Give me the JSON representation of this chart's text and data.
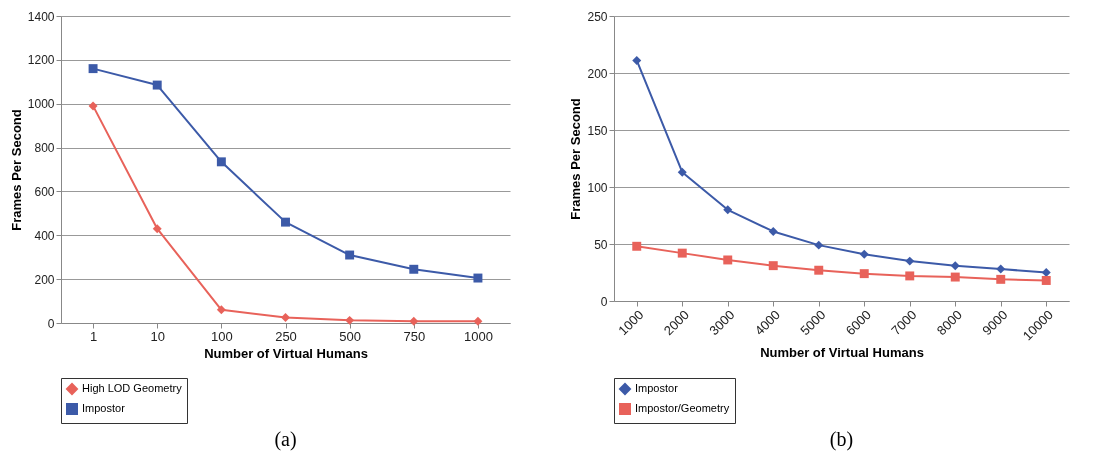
{
  "chart_data": [
    {
      "type": "line",
      "xlabel": "Number of Virtual Humans",
      "ylabel": "Frames Per Second",
      "categories": [
        "1",
        "10",
        "100",
        "250",
        "500",
        "750",
        "1000"
      ],
      "ylim": [
        0,
        1400
      ],
      "yticks": [
        0,
        200,
        400,
        600,
        800,
        1000,
        1200,
        1400
      ],
      "grid": "y",
      "legend": "bottom left",
      "annotations": [
        "(a)"
      ],
      "series": [
        {
          "name": "High LOD Geometry",
          "color": "#e8625a",
          "marker": "diamond",
          "values": [
            990,
            430,
            60,
            25,
            12,
            8,
            8
          ]
        },
        {
          "name": "Impostor",
          "color": "#3c5aa8",
          "marker": "square",
          "values": [
            1160,
            1085,
            735,
            460,
            310,
            245,
            205
          ]
        }
      ]
    },
    {
      "type": "line",
      "xlabel": "Number of Virtual Humans",
      "ylabel": "Frames Per Second",
      "categories": [
        "1000",
        "2000",
        "3000",
        "4000",
        "5000",
        "6000",
        "7000",
        "8000",
        "9000",
        "10000"
      ],
      "ylim": [
        0,
        250
      ],
      "yticks": [
        0,
        50,
        100,
        150,
        200,
        250
      ],
      "grid": "y",
      "legend": "bottom left",
      "annotations": [
        "(b)"
      ],
      "series": [
        {
          "name": "Impostor",
          "color": "#3c5aa8",
          "marker": "diamond",
          "values": [
            211,
            113,
            80,
            61,
            49,
            41,
            35,
            31,
            28,
            25
          ]
        },
        {
          "name": "Impostor/Geometry",
          "color": "#e8625a",
          "marker": "square",
          "values": [
            48,
            42,
            36,
            31,
            27,
            24,
            22,
            21,
            19,
            18
          ]
        }
      ]
    }
  ]
}
